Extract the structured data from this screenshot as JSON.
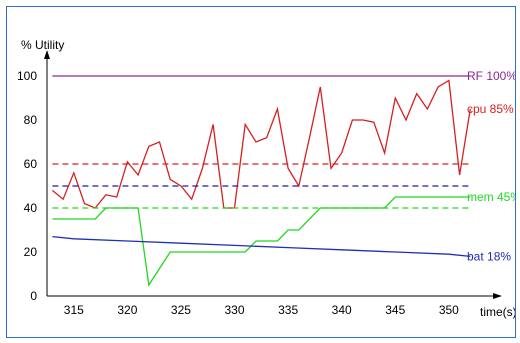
{
  "chart_data": {
    "type": "line",
    "ylabel": "% Utility",
    "xlabel": "time(s)",
    "xlim": [
      312.5,
      353
    ],
    "ylim": [
      0,
      100
    ],
    "x_ticks": [
      315,
      320,
      325,
      330,
      335,
      340,
      345,
      350
    ],
    "y_ticks": [
      0,
      20,
      40,
      60,
      80,
      100
    ],
    "grid": false,
    "series": [
      {
        "name": "RF 100%",
        "label": "RF 100%",
        "color": "#8b2a8f",
        "x": [
          313,
          352
        ],
        "y": [
          100,
          100
        ]
      },
      {
        "name": "cpu 85%",
        "label": "cpu 85%",
        "color": "#d62020",
        "x": [
          313,
          314,
          315,
          316,
          317,
          318,
          319,
          320,
          321,
          322,
          323,
          324,
          325,
          326,
          327,
          328,
          329,
          330,
          331,
          332,
          333,
          334,
          335,
          336,
          337,
          338,
          339,
          340,
          341,
          342,
          343,
          344,
          345,
          346,
          347,
          348,
          349,
          350,
          351,
          352
        ],
        "y": [
          48,
          44,
          56,
          42,
          40,
          46,
          45,
          61,
          55,
          68,
          70,
          53,
          50,
          44,
          58,
          78,
          40,
          40,
          78,
          70,
          72,
          85,
          58,
          50,
          72,
          95,
          58,
          65,
          80,
          80,
          79,
          65,
          90,
          80,
          92,
          85,
          95,
          98,
          55,
          85
        ]
      },
      {
        "name": "cpu threshold",
        "color": "#d62020",
        "dashed": true,
        "x": [
          313,
          352
        ],
        "y": [
          60,
          60
        ]
      },
      {
        "name": "blue threshold",
        "color": "#1f1fb0",
        "dashed": true,
        "x": [
          313,
          352
        ],
        "y": [
          50,
          50
        ]
      },
      {
        "name": "mem 45%",
        "label": "mem 45%",
        "color": "#22d822",
        "x": [
          313,
          317,
          318,
          321,
          322,
          324,
          331,
          332,
          334,
          335,
          336,
          338,
          344,
          345,
          352
        ],
        "y": [
          35,
          35,
          40,
          40,
          5,
          20,
          20,
          25,
          25,
          30,
          30,
          40,
          40,
          45,
          45
        ]
      },
      {
        "name": "mem threshold",
        "color": "#22d822",
        "dashed": true,
        "x": [
          313,
          352
        ],
        "y": [
          40,
          40
        ]
      },
      {
        "name": "bat 18%",
        "label": "bat 18%",
        "color": "#1f2fb8",
        "x": [
          313,
          315,
          320,
          325,
          330,
          335,
          340,
          345,
          350,
          352
        ],
        "y": [
          27,
          26,
          25,
          24,
          23,
          22,
          21,
          20,
          19,
          18
        ]
      }
    ]
  }
}
